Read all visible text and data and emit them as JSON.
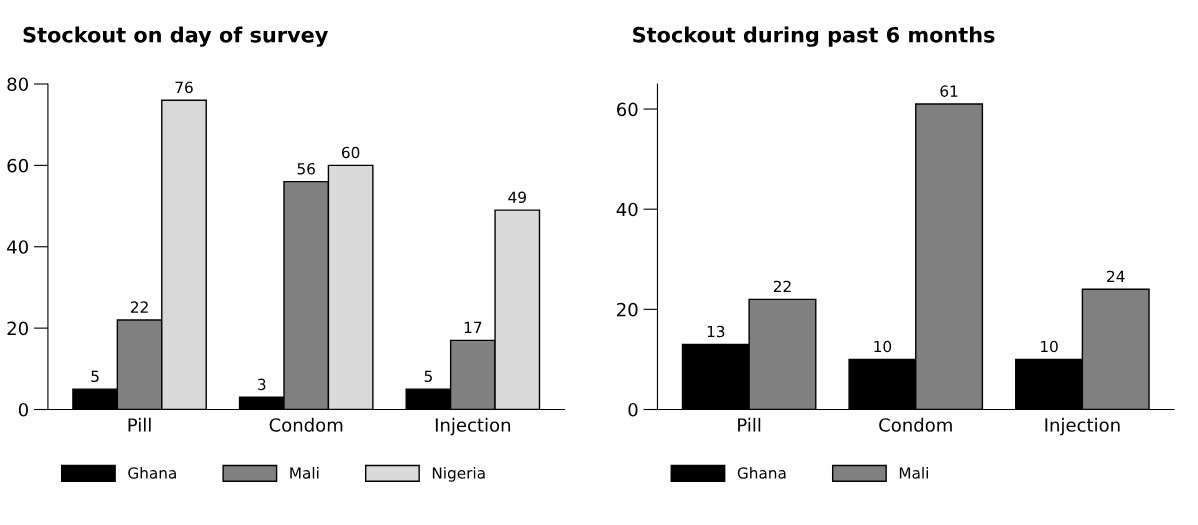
{
  "chart_data": [
    {
      "type": "bar",
      "title": "Stockout on day of survey",
      "categories": [
        "Pill",
        "Condom",
        "Injection"
      ],
      "series": [
        {
          "name": "Ghana",
          "color": "#000000",
          "values": [
            5,
            3,
            5
          ]
        },
        {
          "name": "Mali",
          "color": "#808080",
          "values": [
            22,
            56,
            17
          ]
        },
        {
          "name": "Nigeria",
          "color": "#d9d9d9",
          "values": [
            76,
            60,
            49
          ]
        }
      ],
      "ylim": [
        0,
        80
      ],
      "yticks": [
        0,
        20,
        40,
        60,
        80
      ],
      "data_labels": true,
      "grid": false,
      "legend": "bottom"
    },
    {
      "type": "bar",
      "title": "Stockout during past 6 months",
      "categories": [
        "Pill",
        "Condom",
        "Injection"
      ],
      "series": [
        {
          "name": "Ghana",
          "color": "#000000",
          "values": [
            13,
            10,
            10
          ]
        },
        {
          "name": "Mali",
          "color": "#808080",
          "values": [
            22,
            61,
            24
          ]
        }
      ],
      "ylim": [
        0,
        65
      ],
      "yticks": [
        0,
        20,
        40,
        60
      ],
      "data_labels": true,
      "grid": false,
      "legend": "bottom"
    }
  ]
}
